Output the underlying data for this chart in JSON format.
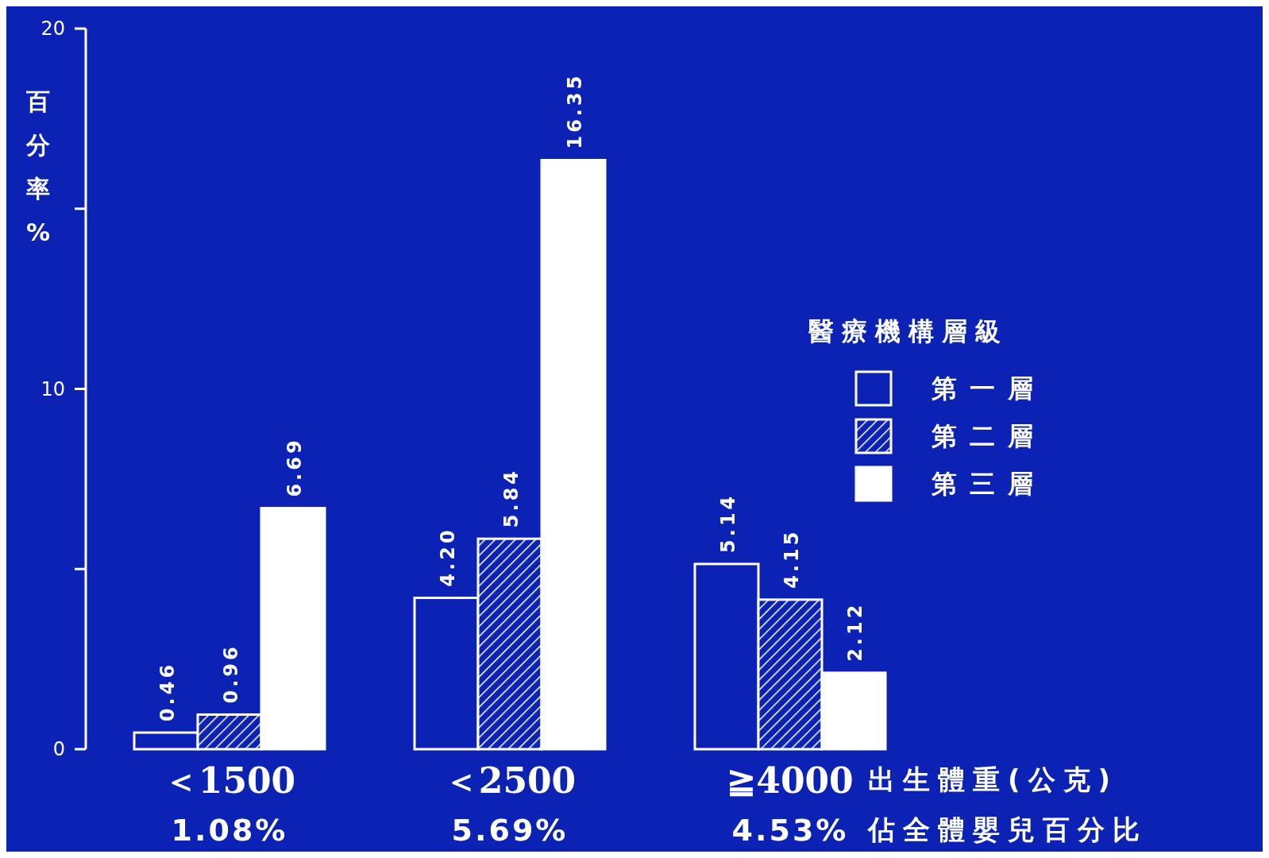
{
  "chart_data": {
    "type": "bar",
    "categories": [
      "＜1500",
      "＜2500",
      "≧4000"
    ],
    "xlabel": "出生體重(公克)",
    "ylabel": "百分率%",
    "legend_title": "醫療機構層級",
    "series": [
      {
        "name": "第一層",
        "color": "#ffffff",
        "values": [
          0.46,
          4.2,
          5.14
        ],
        "value_labels": [
          "0.46",
          "4.20",
          "5.14"
        ]
      },
      {
        "name": "第二層",
        "color": "#ffffff",
        "values": [
          0.96,
          5.84,
          4.15
        ],
        "value_labels": [
          "0.96",
          "5.84",
          "4.15"
        ]
      },
      {
        "name": "第三層",
        "color": "#ffffff",
        "values": [
          6.69,
          16.35,
          2.12
        ],
        "value_labels": [
          "6.69",
          "16.35",
          "2.12"
        ]
      }
    ],
    "annotations": [
      "1.08%",
      "5.69%",
      "4.53%",
      "佔全體嬰兒百分比"
    ],
    "ylim": [
      0,
      20
    ],
    "yticks": [
      0,
      {
        "value": 5,
        "label": null
      },
      10,
      {
        "value": 15,
        "label": null
      },
      20
    ],
    "grid": false,
    "legend": "right"
  }
}
